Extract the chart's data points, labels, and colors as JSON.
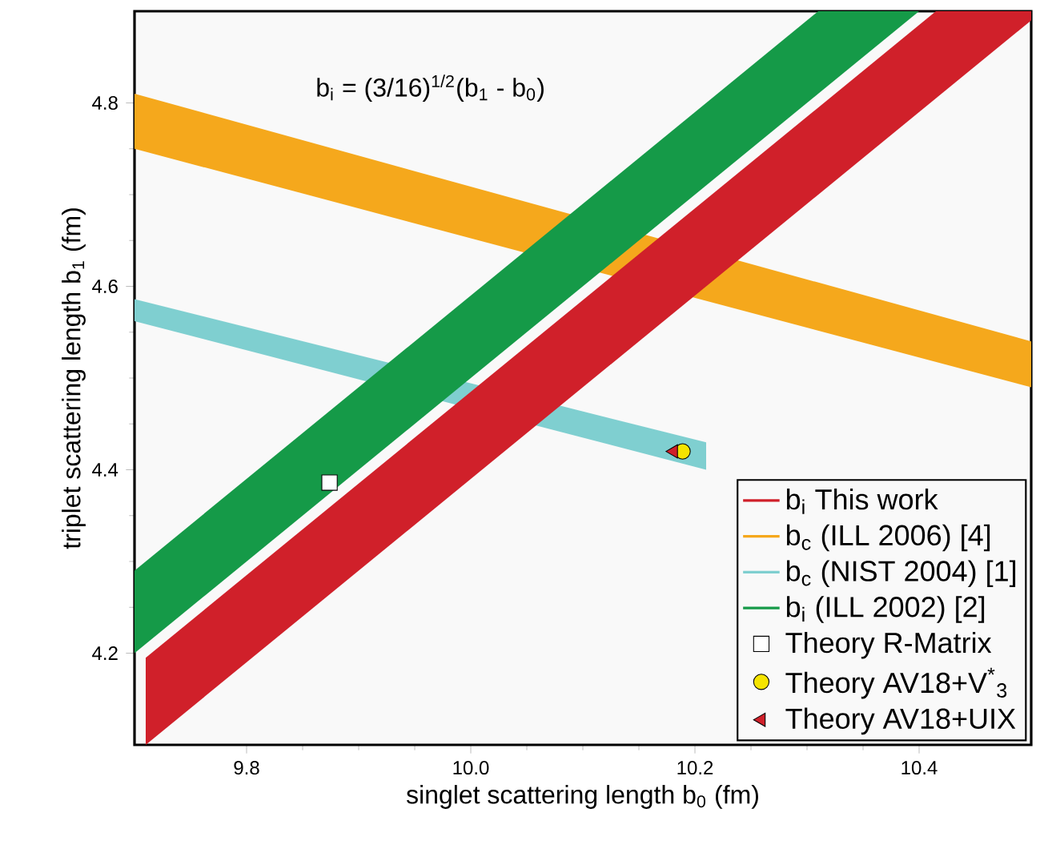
{
  "chart_data": {
    "type": "line",
    "xlabel": "singlet scattering length b$_{0}$ (fm)",
    "ylabel": "triplet scattering length b$_{1}$ (fm)",
    "annotations": [
      "b$_{i}$ = (3/16)$^{1/2}$(b$_{1}$ - b$_{0}$)"
    ],
    "xlim": [
      9.7,
      10.5
    ],
    "ylim": [
      4.1,
      4.9
    ],
    "xticks": [
      9.8,
      {
        "value": 10.0,
        "label": "10.0"
      },
      10.2,
      10.4
    ],
    "yticks": [
      4.2,
      4.4,
      4.6,
      4.8
    ],
    "legend": "bottom right",
    "series": [
      {
        "name": "b$_{i}$ This work",
        "color": "#d0202a",
        "x": [
          9.71,
          10.415,
          10.5
        ],
        "values": [
          null,
          null,
          null
        ],
        "lower": [
          4.1,
          4.805,
          4.89
        ],
        "upper": [
          4.195,
          4.9,
          4.9
        ]
      },
      {
        "name": "b$_{c}$ (ILL 2006) [4]",
        "color": "#f5a81c",
        "x": [
          9.7,
          10.5
        ],
        "values": [
          null,
          null
        ],
        "lower": [
          4.75,
          4.49
        ],
        "upper": [
          4.81,
          4.54
        ]
      },
      {
        "name": "b$_{c}$ (NIST 2004) [1]",
        "color": "#7fcfd0",
        "x": [
          9.7,
          10.21
        ],
        "values": [
          null,
          null
        ],
        "lower": [
          4.562,
          4.4
        ],
        "upper": [
          4.586,
          4.43
        ]
      },
      {
        "name": "b$_{i}$  (ILL 2002) [2]",
        "color": "#159a48",
        "x": [
          9.7,
          10.31,
          10.4
        ],
        "values": [
          null,
          null,
          null
        ],
        "lower": [
          4.2,
          4.81,
          4.9
        ],
        "upper": [
          4.29,
          4.9,
          4.9
        ]
      },
      {
        "name": "Theory R-Matrix",
        "type": "scatter",
        "marker": "square",
        "color": "#ffffff",
        "x": [
          9.874
        ],
        "values": [
          4.386
        ]
      },
      {
        "name": "Theory AV18+V$^{*}$$_{3}$",
        "type": "scatter",
        "marker": "circle",
        "color": "#f5e400",
        "x": [
          10.189
        ],
        "values": [
          4.42
        ]
      },
      {
        "name": "Theory AV18+UIX",
        "type": "scatter",
        "marker": "triangle",
        "color": "#d0202a",
        "x": [
          10.181
        ],
        "values": [
          4.42
        ]
      }
    ]
  }
}
